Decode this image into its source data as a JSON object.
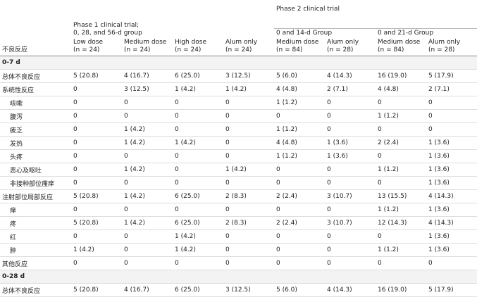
{
  "header": {
    "row_label": "不良反应",
    "phase1": [
      "Phase 1 clinical trial;",
      "0, 28, and 56-d group"
    ],
    "phase2": "Phase 2 clinical trial",
    "group14": "0 and 14-d Group",
    "group21": "0 and 21-d Group",
    "columns": [
      [
        "Low dose",
        "(n = 24)"
      ],
      [
        "Medium dose",
        "(n = 24)"
      ],
      [
        "High dose",
        "(n = 24)"
      ],
      [
        "Alum only",
        "(n = 24)"
      ],
      [
        "Medium dose",
        "(n = 84)"
      ],
      [
        "Alum only",
        "(n = 28)"
      ],
      [
        "Medium dose",
        "(n = 84)"
      ],
      [
        "Alum only",
        "(n = 28)"
      ]
    ]
  },
  "sections": [
    {
      "label": "0-7 d",
      "rows": [
        {
          "label": "总体不良反应",
          "cells": [
            "5 (20.8)",
            "4 (16.7)",
            "6 (25.0)",
            "3 (12.5)",
            "5 (6.0)",
            "4 (14.3)",
            "16 (19.0)",
            "5 (17.9)"
          ],
          "items": []
        },
        {
          "label": "系统性反应",
          "cells": [
            "0",
            "3 (12.5)",
            "1 (4.2)",
            "1 (4.2)",
            "4 (4.8)",
            "2 (7.1)",
            "4 (4.8)",
            "2 (7.1)"
          ],
          "items": [
            {
              "label": "咳嗽",
              "cells": [
                "0",
                "0",
                "0",
                "0",
                "1 (1.2)",
                "0",
                "0",
                "0"
              ]
            },
            {
              "label": "腹泻",
              "cells": [
                "0",
                "0",
                "0",
                "0",
                "0",
                "0",
                "1 (1.2)",
                "0"
              ]
            },
            {
              "label": "疲乏",
              "cells": [
                "0",
                "1 (4.2)",
                "0",
                "0",
                "1 (1.2)",
                "0",
                "0",
                "0"
              ]
            },
            {
              "label": "发热",
              "cells": [
                "0",
                "1 (4.2)",
                "1 (4.2)",
                "0",
                "4 (4.8)",
                "1 (3.6)",
                "2 (2.4)",
                "1 (3.6)"
              ]
            },
            {
              "label": "头疼",
              "cells": [
                "0",
                "0",
                "0",
                "0",
                "1 (1.2)",
                "1 (3.6)",
                "0",
                "1 (3.6)"
              ]
            },
            {
              "label": "恶心及呕吐",
              "cells": [
                "0",
                "1 (4.2)",
                "0",
                "1 (4.2)",
                "0",
                "0",
                "1 (1.2)",
                "1 (3.6)"
              ]
            },
            {
              "label": "非接种部位瘙痒",
              "cells": [
                "0",
                "0",
                "0",
                "0",
                "0",
                "0",
                "0",
                "1 (3.6)"
              ]
            }
          ]
        },
        {
          "label": "注射部位局部反应",
          "cells": [
            "5 (20.8)",
            "1 (4.2)",
            "6 (25.0)",
            "2 (8.3)",
            "2 (2.4)",
            "3 (10.7)",
            "13 (15.5)",
            "4 (14.3)"
          ],
          "items": [
            {
              "label": "痒",
              "cells": [
                "0",
                "0",
                "0",
                "0",
                "0",
                "0",
                "1 (1.2)",
                "1 (3.6)"
              ]
            },
            {
              "label": "疼",
              "cells": [
                "5 (20.8)",
                "1 (4.2)",
                "6 (25.0)",
                "2 (8.3)",
                "2 (2.4)",
                "3 (10.7)",
                "12 (14.3)",
                "4 (14.3)"
              ]
            },
            {
              "label": "红",
              "cells": [
                "0",
                "0",
                "1 (4.2)",
                "0",
                "0",
                "0",
                "0",
                "1 (3.6)"
              ]
            },
            {
              "label": "肿",
              "cells": [
                "1 (4.2)",
                "0",
                "1 (4.2)",
                "0",
                "0",
                "0",
                "1 (1.2)",
                "1 (3.6)"
              ]
            }
          ]
        },
        {
          "label": "其他反应",
          "cells": [
            "0",
            "0",
            "0",
            "0",
            "0",
            "0",
            "0",
            "0"
          ],
          "items": []
        }
      ]
    },
    {
      "label": "0-28 d",
      "rows": [
        {
          "label": "总体不良反应",
          "cells": [
            "5 (20.8)",
            "4 (16.7)",
            "6 (25.0)",
            "3 (12.5)",
            "5 (6.0)",
            "4 (14.3)",
            "16 (19.0)",
            "5 (17.9)"
          ],
          "items": []
        }
      ]
    }
  ]
}
